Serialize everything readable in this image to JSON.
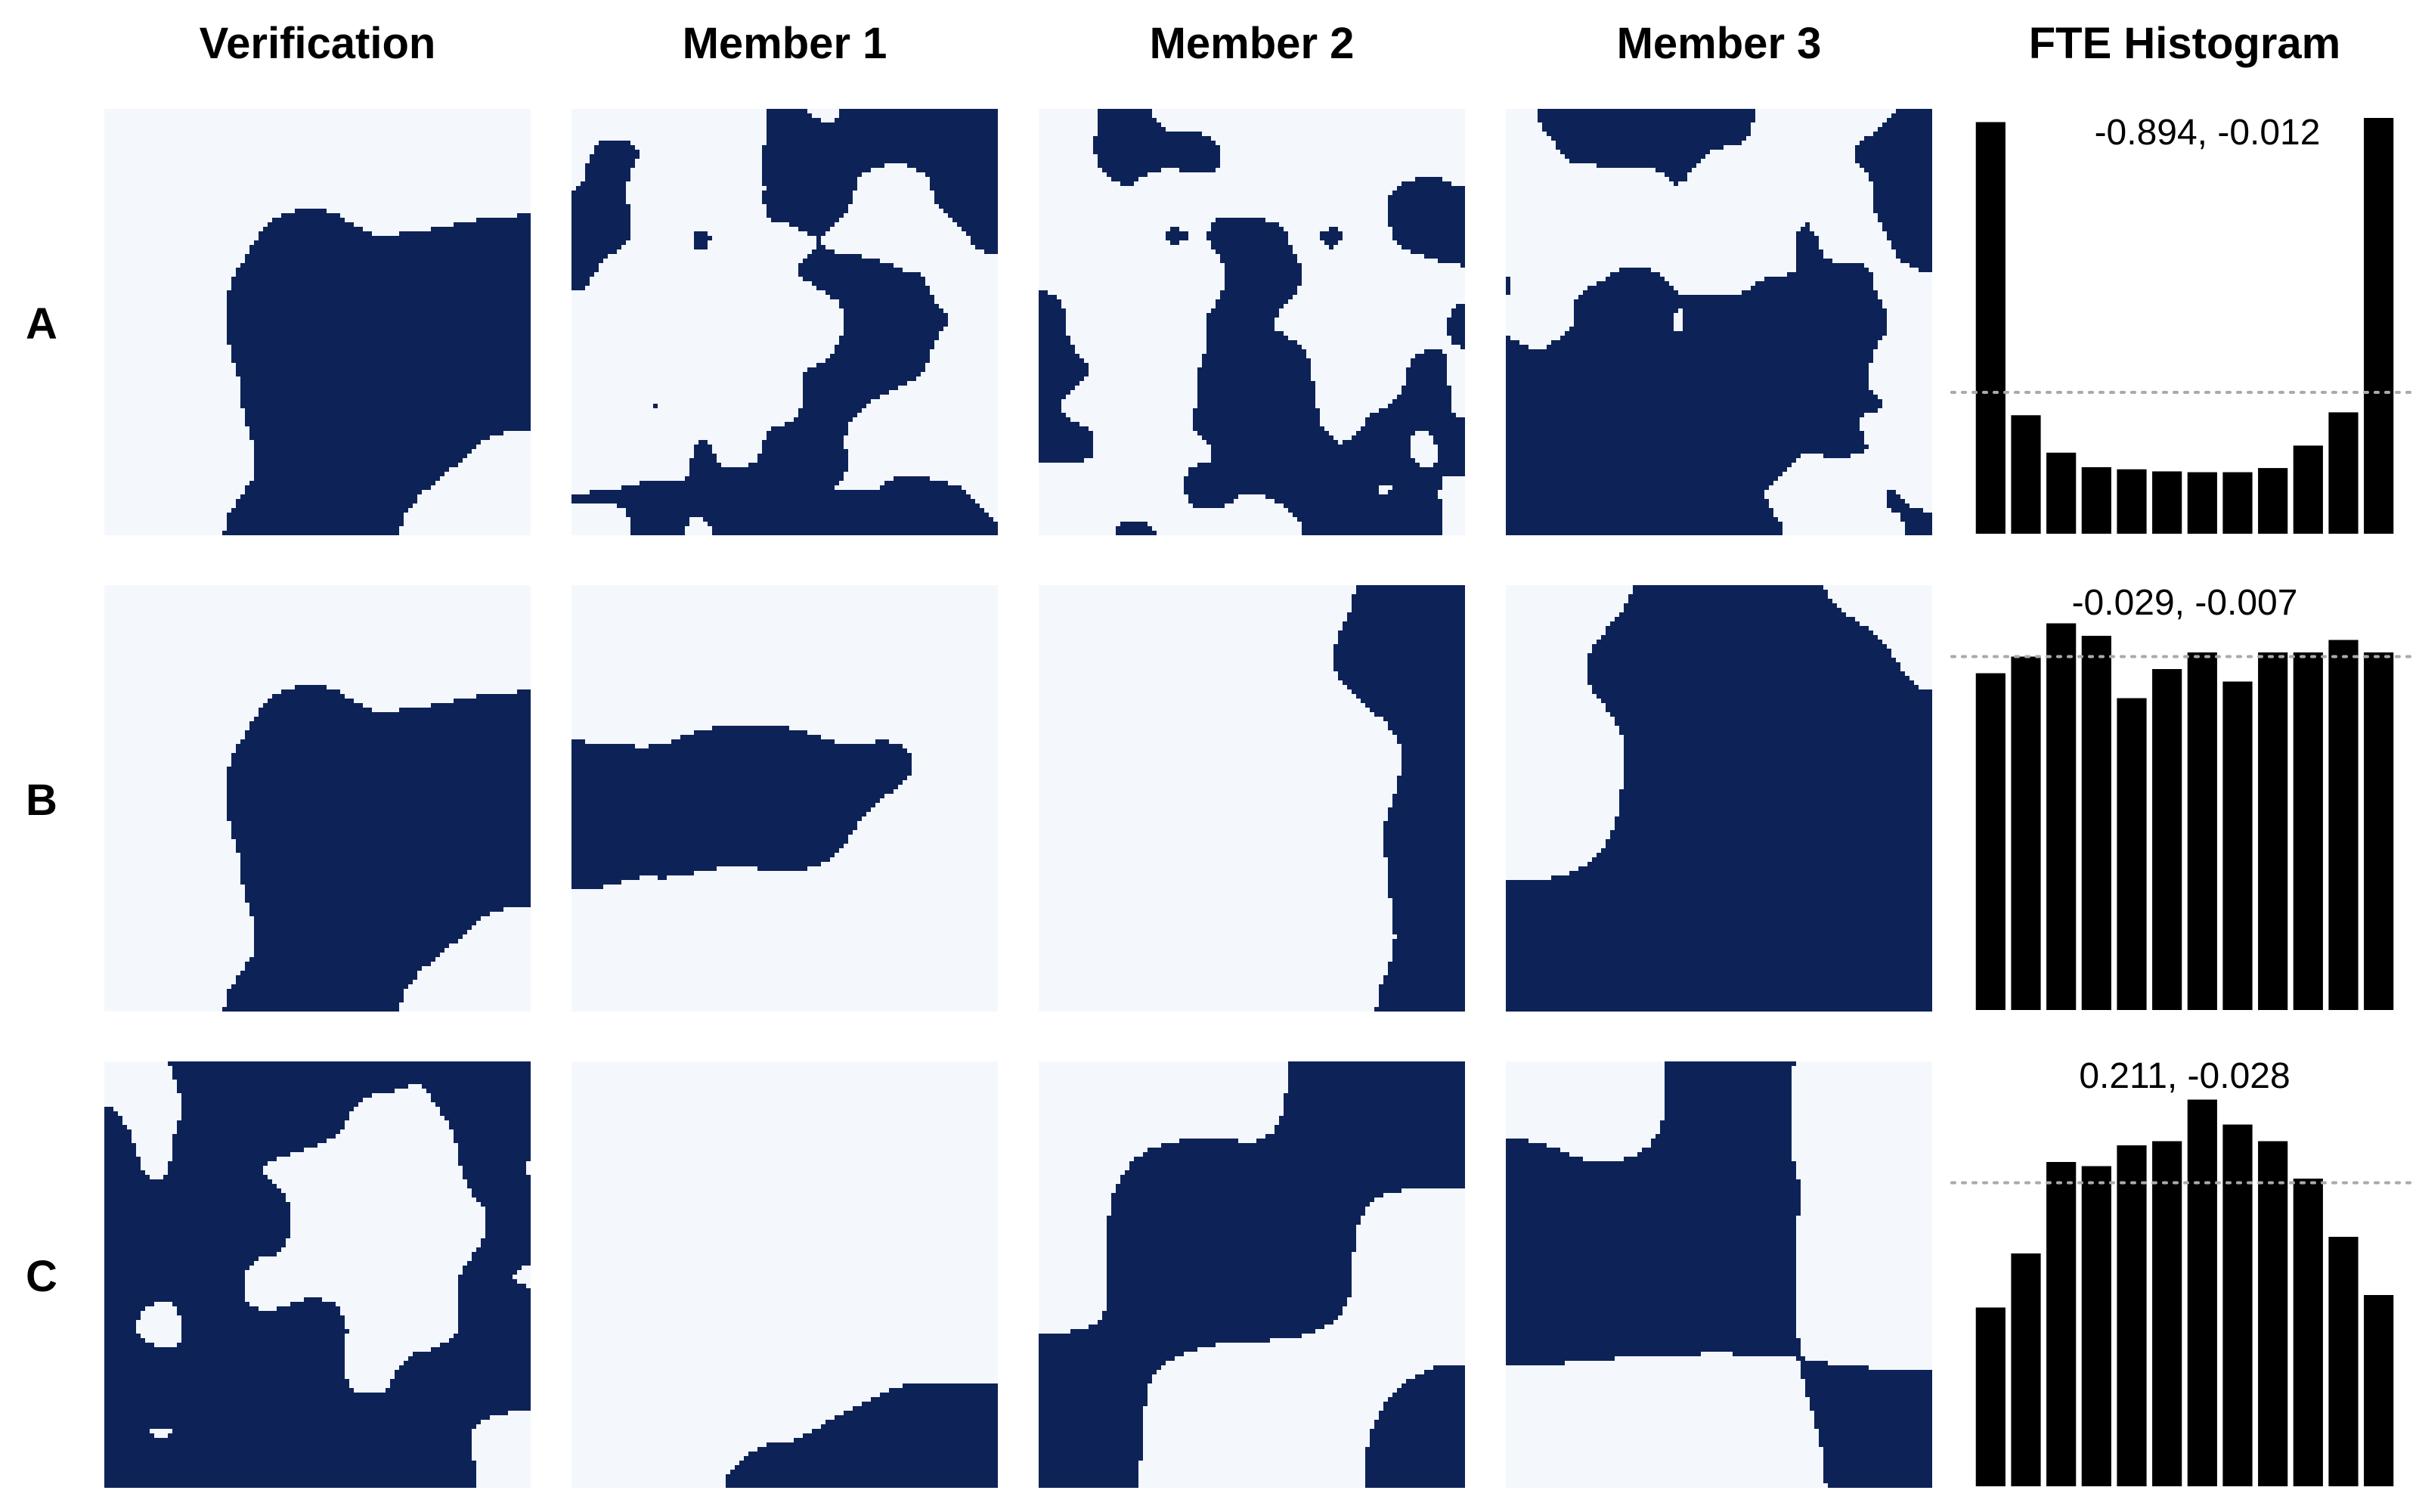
{
  "column_headers": [
    "Verification",
    "Member 1",
    "Member 2",
    "Member 3",
    "FTE Histogram"
  ],
  "colors": {
    "dark": "#0d2257",
    "light": "#f4f8fd",
    "bar": "#000000",
    "reference_line": "#aaaaaa"
  },
  "chart_data": {
    "type": "bar",
    "title": "FTE Histogram",
    "rows": [
      {
        "label": "A",
        "stats_text": "-0.894, -0.012",
        "values": [
          0.99,
          0.285,
          0.195,
          0.16,
          0.155,
          0.15,
          0.148,
          0.148,
          0.158,
          0.212,
          0.292,
          1.0
        ],
        "uniform_reference": 0.34
      },
      {
        "label": "B",
        "stats_text": "-0.029, -0.007",
        "values": [
          0.81,
          0.85,
          0.93,
          0.9,
          0.75,
          0.82,
          0.86,
          0.79,
          0.86,
          0.86,
          0.89,
          0.86
        ],
        "uniform_reference": 0.85
      },
      {
        "label": "C",
        "stats_text": "0.211, -0.028",
        "values": [
          0.43,
          0.56,
          0.78,
          0.77,
          0.82,
          0.83,
          0.93,
          0.87,
          0.83,
          0.74,
          0.6,
          0.46
        ],
        "uniform_reference": 0.73
      }
    ]
  }
}
